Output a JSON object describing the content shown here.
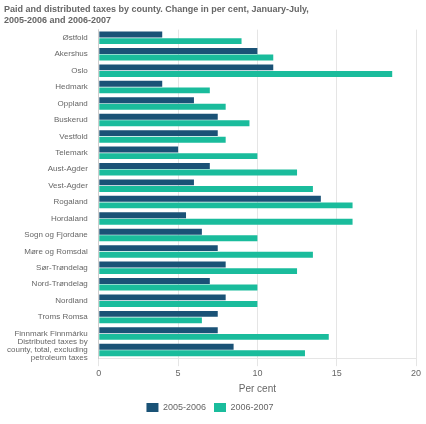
{
  "chart_data": {
    "type": "bar",
    "orientation": "horizontal",
    "title": "Paid and distributed taxes by county. Change in per cent, January-July,\n2005-2006 and 2006-2007",
    "categories": [
      "Østfold",
      "Akershus",
      "Oslo",
      "Hedmark",
      "Oppland",
      "Buskerud",
      "Vestfold",
      "Telemark",
      "Aust-Agder",
      "Vest-Agder",
      "Rogaland",
      "Hordaland",
      "Sogn og Fjordane",
      "Møre og Romsdal",
      "Sør-Trøndelag",
      "Nord-Trøndelag",
      "Nordland",
      "Troms Romsa",
      "Finnmark Finnmárku",
      "Distributed taxes by\ncounty, total, excluding\npetroleum taxes"
    ],
    "series": [
      {
        "name": "2005-2006",
        "color": "#1a5276",
        "values": [
          4.0,
          10.0,
          11.0,
          4.0,
          6.0,
          7.5,
          7.5,
          5.0,
          7.0,
          6.0,
          14.0,
          5.5,
          6.5,
          7.5,
          8.0,
          7.0,
          8.0,
          7.5,
          7.5,
          8.5
        ]
      },
      {
        "name": "2006-2007",
        "color": "#1abc9c",
        "values": [
          9.0,
          11.0,
          18.5,
          7.0,
          8.0,
          9.5,
          8.0,
          10.0,
          12.5,
          13.5,
          16.0,
          16.0,
          10.0,
          13.5,
          12.5,
          10.0,
          10.0,
          6.5,
          14.5,
          13.0
        ]
      }
    ],
    "xlabel": "Per cent",
    "xlim": [
      0,
      20
    ],
    "xticks": [
      0,
      5,
      10,
      15,
      20
    ],
    "grid": true,
    "legend": "bottom"
  }
}
